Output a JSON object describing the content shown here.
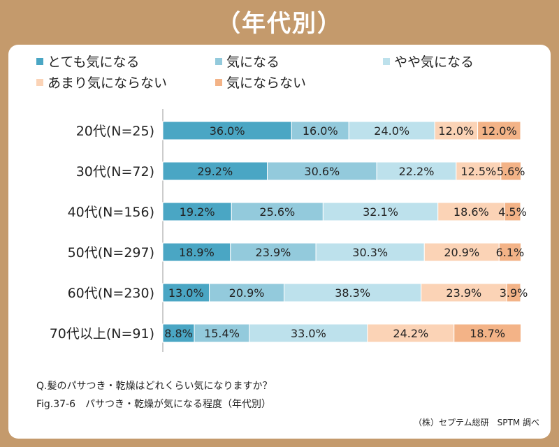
{
  "title": "（年代別）",
  "notes": {
    "question": "Q.髪のパサつき・乾燥はどれくらい気になりますか？",
    "figure": "Fig.37-6　パサつき・乾燥が気になる程度（年代別）",
    "source": "（株）セプテム総研　SPTM 調べ"
  },
  "chart_data": {
    "type": "bar",
    "orientation": "horizontal",
    "stacked": true,
    "percent": true,
    "xlim": [
      0,
      100
    ],
    "legend_placement": "top",
    "grid": false,
    "categories": [
      "20代(N=25)",
      "30代(N=72)",
      "40代(N=156)",
      "50代(N=297)",
      "60代(N=230)",
      "70代以上(N=91)"
    ],
    "series": [
      {
        "name": "とても気になる",
        "color": "#4aa6c4",
        "values": [
          36.0,
          29.2,
          19.2,
          18.9,
          13.0,
          8.8
        ],
        "labels": [
          "36.0%",
          "29.2%",
          "19.2%",
          "18.9%",
          "13.0%",
          "8.8%"
        ]
      },
      {
        "name": "気になる",
        "color": "#93cadc",
        "values": [
          16.0,
          30.6,
          25.6,
          23.9,
          20.9,
          15.4
        ],
        "labels": [
          "16.0%",
          "30.6%",
          "25.6%",
          "23.9%",
          "20.9%",
          "15.4%"
        ]
      },
      {
        "name": "やや気になる",
        "color": "#bde1ec",
        "values": [
          24.0,
          22.2,
          32.1,
          30.3,
          38.3,
          33.0
        ],
        "labels": [
          "24.0%",
          "22.2%",
          "32.1%",
          "30.3%",
          "38.3%",
          "33.0%"
        ]
      },
      {
        "name": "あまり気にならない",
        "color": "#fbd3b6",
        "values": [
          12.0,
          12.5,
          18.6,
          20.9,
          23.9,
          24.2
        ],
        "labels": [
          "12.0%",
          "12.5%",
          "18.6%",
          "20.9%",
          "23.9%",
          "24.2%"
        ]
      },
      {
        "name": "気にならない",
        "color": "#f3b387",
        "values": [
          12.0,
          5.6,
          4.5,
          6.1,
          3.9,
          18.7
        ],
        "labels": [
          "12.0%",
          "5.6%",
          "4.5%",
          "6.1%",
          "3.9%",
          "18.7%"
        ]
      }
    ]
  }
}
